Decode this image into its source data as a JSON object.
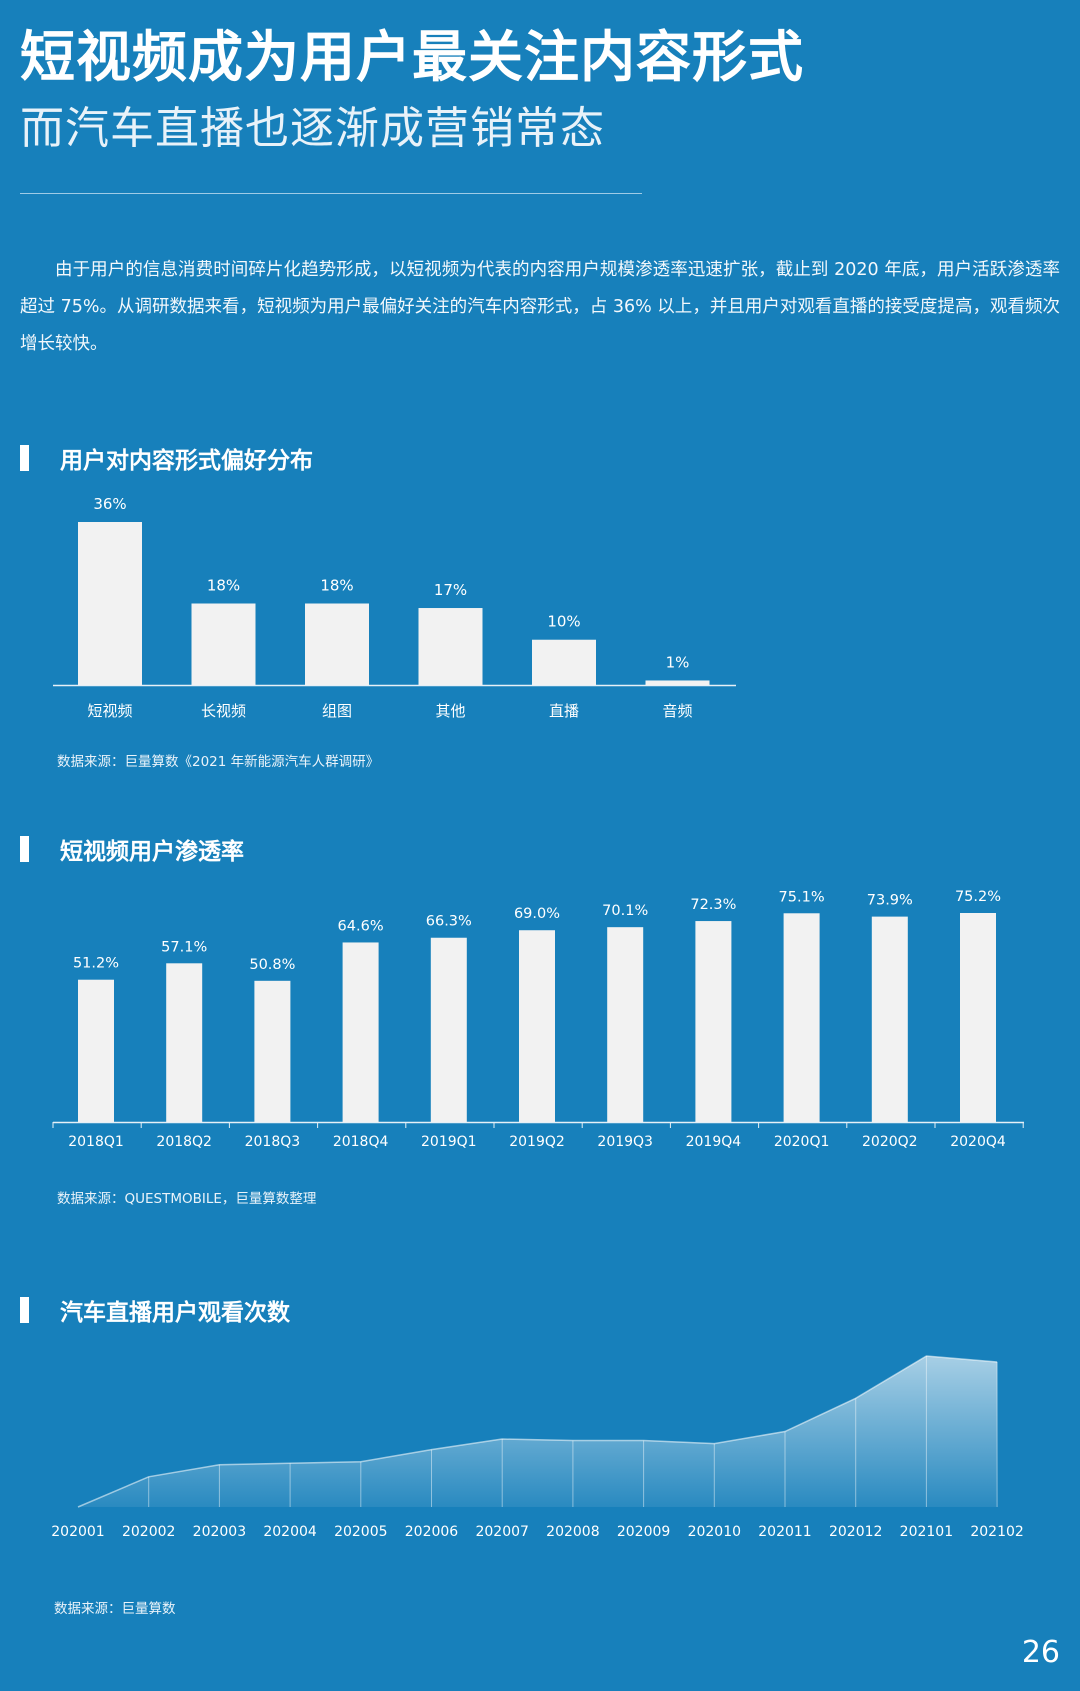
{
  "header": {
    "title": "短视频成为用户最关注内容形式",
    "subtitle": "而汽车直播也逐渐成营销常态"
  },
  "intro": "由于用户的信息消费时间碎片化趋势形成，以短视频为代表的内容用户规模渗透率迅速扩张，截止到 2020 年底，用户活跃渗透率超过 75%。从调研数据来看，短视频为用户最偏好关注的汽车内容形式，占 36% 以上，并且用户对观看直播的接受度提高，观看频次增长较快。",
  "sections": [
    {
      "title": "用户对内容形式偏好分布",
      "source": "数据来源：巨量算数《2021 年新能源汽车人群调研》"
    },
    {
      "title": "短视频用户渗透率",
      "source": "数据来源：QUESTMOBILE，巨量算数整理"
    },
    {
      "title": "汽车直播用户观看次数",
      "source": "数据来源：巨量算数"
    }
  ],
  "page_number": "26",
  "colors": {
    "background": "#1780bb",
    "bar": "#f2f2f2",
    "text": "#ffffff"
  },
  "chart_data": [
    {
      "type": "bar",
      "title": "用户对内容形式偏好分布",
      "categories": [
        "短视频",
        "长视频",
        "组图",
        "其他",
        "直播",
        "音频"
      ],
      "values": [
        36,
        18,
        18,
        17,
        10,
        1
      ],
      "value_labels": [
        "36%",
        "18%",
        "18%",
        "17%",
        "10%",
        "1%"
      ],
      "ylim": [
        0,
        36
      ],
      "grid": false
    },
    {
      "type": "bar",
      "title": "短视频用户渗透率",
      "categories": [
        "2018Q1",
        "2018Q2",
        "2018Q3",
        "2018Q4",
        "2019Q1",
        "2019Q2",
        "2019Q3",
        "2019Q4",
        "2020Q1",
        "2020Q2",
        "2020Q4"
      ],
      "values": [
        51.2,
        57.1,
        50.8,
        64.6,
        66.3,
        69.0,
        70.1,
        72.3,
        75.1,
        73.9,
        75.2
      ],
      "value_labels": [
        "51.2%",
        "57.1%",
        "50.8%",
        "64.6%",
        "66.3%",
        "69.0%",
        "70.1%",
        "72.3%",
        "75.1%",
        "73.9%",
        "75.2%"
      ],
      "ylim": [
        0,
        75.2
      ],
      "grid": false
    },
    {
      "type": "area",
      "title": "汽车直播用户观看次数",
      "x": [
        "202001",
        "202002",
        "202003",
        "202004",
        "202005",
        "202006",
        "202007",
        "202008",
        "202009",
        "202010",
        "202011",
        "202012",
        "202101",
        "202102"
      ],
      "values": [
        0,
        20,
        28,
        29,
        30,
        38,
        45,
        44,
        44,
        42,
        50,
        72,
        100,
        96
      ],
      "ylim": [
        0,
        100
      ],
      "grid": false
    }
  ]
}
